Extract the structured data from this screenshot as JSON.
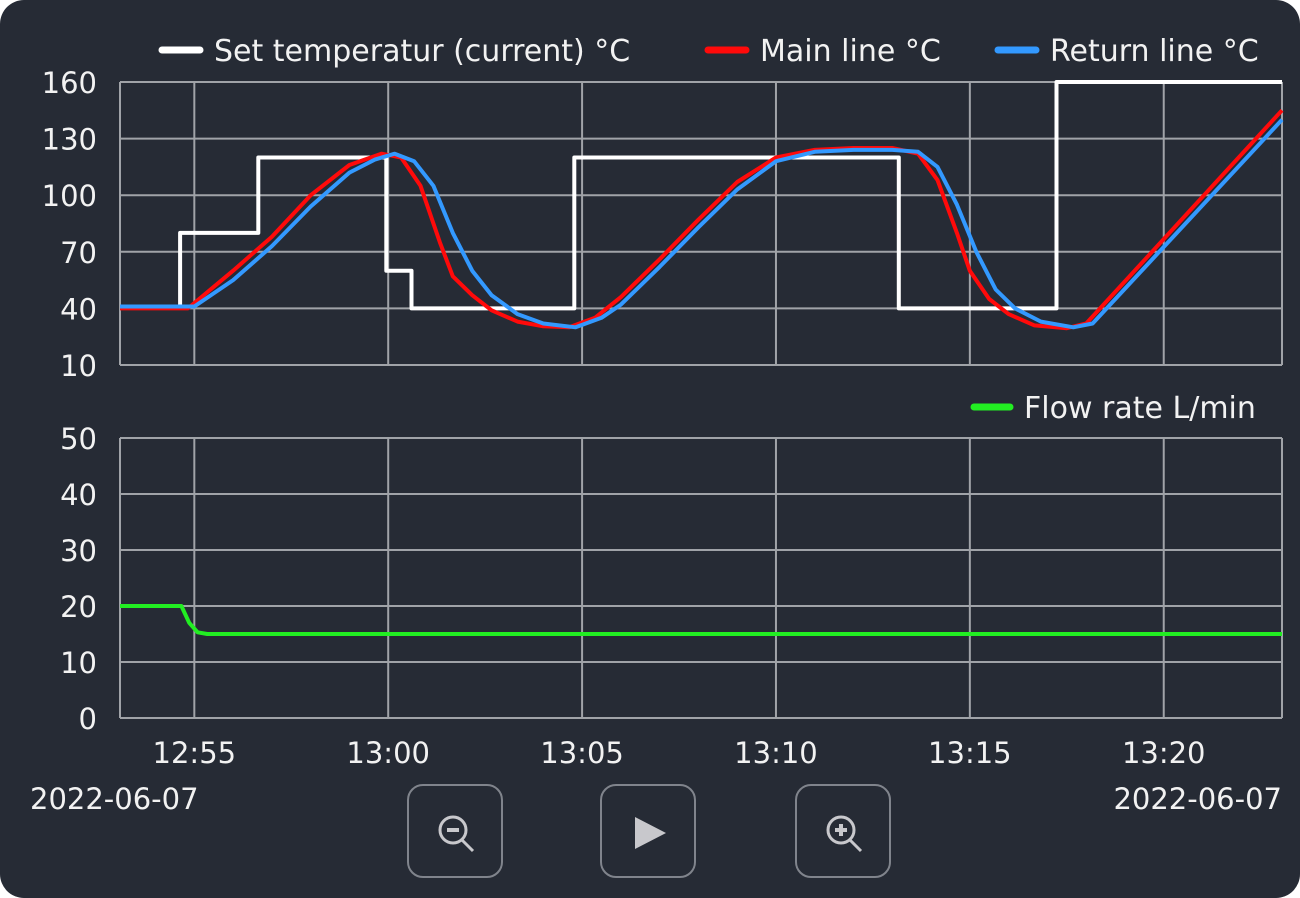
{
  "chart_data": [
    {
      "type": "line",
      "x_axis": {
        "type": "time",
        "range": [
          "12:53:05",
          "13:23:03"
        ],
        "ticks": [
          "12:55",
          "13:00",
          "13:05",
          "13:10",
          "13:15",
          "13:20"
        ],
        "date_left": "2022-06-07",
        "date_right": "2022-06-07"
      },
      "ylim": [
        10,
        160
      ],
      "yticks": [
        10,
        40,
        70,
        100,
        130,
        160
      ],
      "grid": true,
      "legend": "top-right",
      "series": [
        {
          "name": "Set temperatur (current) °C",
          "color": "#ffffff",
          "step": true,
          "points": [
            [
              "12:53:05",
              41
            ],
            [
              "12:54:38",
              41
            ],
            [
              "12:54:38",
              80
            ],
            [
              "12:56:39",
              80
            ],
            [
              "12:56:39",
              120
            ],
            [
              "12:59:57",
              120
            ],
            [
              "12:59:57",
              60
            ],
            [
              "13:00:36",
              60
            ],
            [
              "13:00:36",
              40
            ],
            [
              "13:04:48",
              40
            ],
            [
              "13:04:48",
              120
            ],
            [
              "13:13:10",
              120
            ],
            [
              "13:13:10",
              40
            ],
            [
              "13:17:14",
              40
            ],
            [
              "13:17:14",
              160
            ],
            [
              "13:23:03",
              160
            ]
          ]
        },
        {
          "name": "Main line °C",
          "color": "#ff0a0a",
          "points": [
            [
              "12:53:05",
              40
            ],
            [
              "12:54:50",
              40
            ],
            [
              "12:56:00",
              60
            ],
            [
              "12:57:00",
              78
            ],
            [
              "12:58:00",
              100
            ],
            [
              "12:59:00",
              116
            ],
            [
              "12:59:50",
              122
            ],
            [
              "13:00:20",
              120
            ],
            [
              "13:00:50",
              105
            ],
            [
              "13:01:20",
              75
            ],
            [
              "13:01:40",
              57
            ],
            [
              "13:02:10",
              47
            ],
            [
              "13:02:40",
              39
            ],
            [
              "13:03:20",
              33
            ],
            [
              "13:04:00",
              30.5
            ],
            [
              "13:04:40",
              30
            ],
            [
              "13:05:20",
              35
            ],
            [
              "13:06:00",
              46
            ],
            [
              "13:07:00",
              66
            ],
            [
              "13:08:00",
              87
            ],
            [
              "13:09:00",
              107
            ],
            [
              "13:10:00",
              120
            ],
            [
              "13:11:00",
              124
            ],
            [
              "13:12:00",
              125
            ],
            [
              "13:13:00",
              125
            ],
            [
              "13:13:40",
              122
            ],
            [
              "13:14:10",
              108
            ],
            [
              "13:14:40",
              80
            ],
            [
              "13:15:00",
              60
            ],
            [
              "13:15:30",
              45
            ],
            [
              "13:16:00",
              37
            ],
            [
              "13:16:40",
              31
            ],
            [
              "13:17:30",
              29.5
            ],
            [
              "13:18:00",
              32
            ],
            [
              "13:23:03",
              145
            ]
          ]
        },
        {
          "name": "Return line °C",
          "color": "#3399ff",
          "points": [
            [
              "12:53:05",
              41
            ],
            [
              "12:55:00",
              41
            ],
            [
              "12:56:00",
              55
            ],
            [
              "12:57:00",
              73
            ],
            [
              "12:58:00",
              94
            ],
            [
              "12:59:00",
              112
            ],
            [
              "12:59:40",
              119
            ],
            [
              "13:00:10",
              122
            ],
            [
              "13:00:40",
              118
            ],
            [
              "13:01:10",
              105
            ],
            [
              "13:01:40",
              80
            ],
            [
              "13:02:10",
              60
            ],
            [
              "13:02:40",
              47
            ],
            [
              "13:03:20",
              37
            ],
            [
              "13:04:00",
              32
            ],
            [
              "13:04:50",
              30
            ],
            [
              "13:05:30",
              35
            ],
            [
              "13:06:00",
              42
            ],
            [
              "13:07:00",
              62
            ],
            [
              "13:08:00",
              83
            ],
            [
              "13:09:00",
              103
            ],
            [
              "13:10:00",
              118
            ],
            [
              "13:11:00",
              123
            ],
            [
              "13:12:00",
              124
            ],
            [
              "13:13:00",
              124
            ],
            [
              "13:13:40",
              123
            ],
            [
              "13:14:10",
              115
            ],
            [
              "13:14:40",
              95
            ],
            [
              "13:15:10",
              70
            ],
            [
              "13:15:40",
              50
            ],
            [
              "13:16:10",
              40
            ],
            [
              "13:16:50",
              33
            ],
            [
              "13:17:40",
              30
            ],
            [
              "13:18:10",
              32
            ],
            [
              "13:23:03",
              140
            ]
          ]
        }
      ]
    },
    {
      "type": "line",
      "x_axis": {
        "type": "time",
        "range": [
          "12:53:05",
          "13:23:03"
        ]
      },
      "ylim": [
        0,
        50
      ],
      "yticks": [
        0,
        10,
        20,
        30,
        40,
        50
      ],
      "grid": true,
      "legend": "top-right",
      "series": [
        {
          "name": "Flow rate L/min",
          "color": "#22ee22",
          "points": [
            [
              "12:53:05",
              20
            ],
            [
              "12:54:40",
              20
            ],
            [
              "12:54:52",
              17
            ],
            [
              "12:55:05",
              15.3
            ],
            [
              "12:55:20",
              15
            ],
            [
              "13:23:03",
              15
            ]
          ]
        }
      ]
    }
  ],
  "controls": {
    "zoom_out": "zoom-out-icon",
    "play": "play-icon",
    "zoom_in": "zoom-in-icon"
  }
}
